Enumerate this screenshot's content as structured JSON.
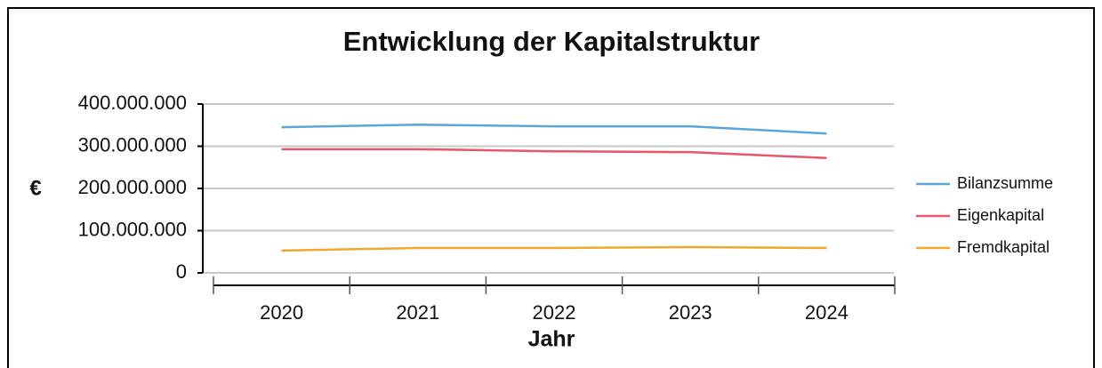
{
  "chart_data": {
    "type": "line",
    "title": "Entwicklung der Kapitalstruktur",
    "x_label": "Jahr",
    "y_label": "€",
    "categories": [
      "2020",
      "2021",
      "2022",
      "2023",
      "2024"
    ],
    "series": [
      {
        "name": "Bilanzsumme",
        "color": "#5aa6d8",
        "values": [
          345000000,
          351000000,
          347000000,
          347000000,
          330000000
        ]
      },
      {
        "name": "Eigenkapital",
        "color": "#e8566a",
        "values": [
          293000000,
          293000000,
          288000000,
          286000000,
          272000000
        ]
      },
      {
        "name": "Fremdkapital",
        "color": "#f0a830",
        "values": [
          53000000,
          59000000,
          59000000,
          61000000,
          59000000
        ]
      }
    ],
    "ylim": [
      0,
      400000000
    ],
    "yticks": [
      0,
      {
        "value": 100000000,
        "label": "100.000.000"
      },
      {
        "value": 200000000,
        "label": "200.000.000"
      },
      {
        "value": 300000000,
        "label": "300.000.000"
      },
      {
        "value": 400000000,
        "label": "400.000.000"
      }
    ],
    "grid": true,
    "legend": "right"
  }
}
